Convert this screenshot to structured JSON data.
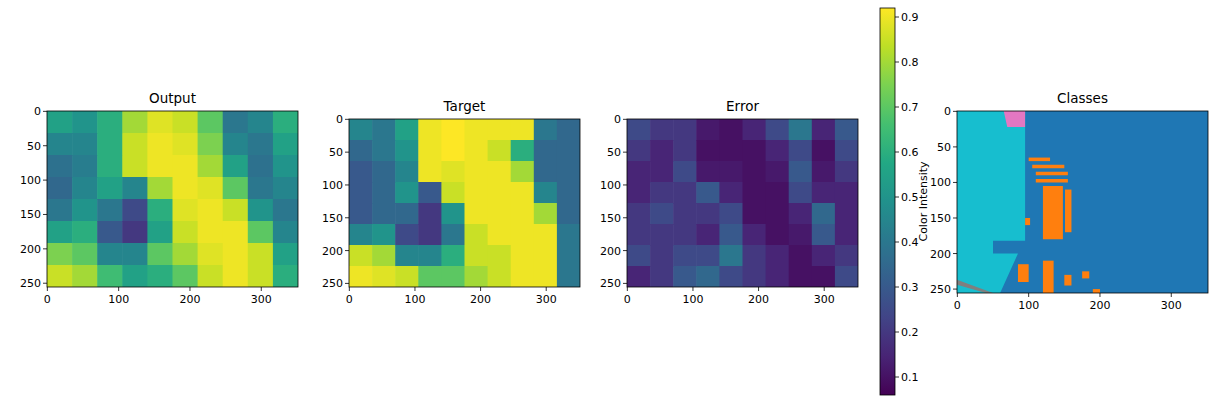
{
  "chart_data": [
    {
      "type": "heatmap",
      "title": "Output",
      "xlim": [
        -0.5,
        351.5
      ],
      "ylim": [
        255.5,
        -0.5
      ],
      "xticks": [
        0,
        100,
        200,
        300
      ],
      "yticks": [
        0,
        50,
        100,
        150,
        200,
        250
      ],
      "cells": [
        [
          0.55,
          0.5,
          0.6,
          0.8,
          0.88,
          0.85,
          0.7,
          0.4,
          0.45,
          0.6
        ],
        [
          0.45,
          0.45,
          0.6,
          0.85,
          0.9,
          0.88,
          0.75,
          0.45,
          0.4,
          0.55
        ],
        [
          0.38,
          0.42,
          0.6,
          0.85,
          0.9,
          0.9,
          0.8,
          0.55,
          0.38,
          0.5
        ],
        [
          0.35,
          0.45,
          0.55,
          0.45,
          0.8,
          0.9,
          0.88,
          0.7,
          0.4,
          0.45
        ],
        [
          0.4,
          0.5,
          0.4,
          0.25,
          0.6,
          0.88,
          0.9,
          0.85,
          0.5,
          0.4
        ],
        [
          0.55,
          0.6,
          0.3,
          0.2,
          0.55,
          0.85,
          0.9,
          0.9,
          0.7,
          0.45
        ],
        [
          0.75,
          0.7,
          0.45,
          0.45,
          0.7,
          0.8,
          0.88,
          0.9,
          0.85,
          0.55
        ],
        [
          0.85,
          0.8,
          0.65,
          0.55,
          0.6,
          0.7,
          0.85,
          0.9,
          0.85,
          0.6
        ]
      ]
    },
    {
      "type": "heatmap",
      "title": "Target",
      "xlim": [
        -0.5,
        351.5
      ],
      "ylim": [
        255.5,
        -0.5
      ],
      "xticks": [
        0,
        100,
        200,
        300
      ],
      "yticks": [
        0,
        50,
        100,
        150,
        200,
        250
      ],
      "cells": [
        [
          0.45,
          0.4,
          0.55,
          0.9,
          0.92,
          0.9,
          0.9,
          0.9,
          0.4,
          0.35
        ],
        [
          0.35,
          0.4,
          0.5,
          0.9,
          0.92,
          0.9,
          0.85,
          0.6,
          0.35,
          0.35
        ],
        [
          0.3,
          0.35,
          0.45,
          0.9,
          0.88,
          0.9,
          0.9,
          0.8,
          0.35,
          0.35
        ],
        [
          0.3,
          0.35,
          0.5,
          0.3,
          0.85,
          0.9,
          0.9,
          0.9,
          0.45,
          0.35
        ],
        [
          0.3,
          0.35,
          0.35,
          0.2,
          0.5,
          0.9,
          0.9,
          0.9,
          0.8,
          0.35
        ],
        [
          0.45,
          0.5,
          0.25,
          0.2,
          0.4,
          0.85,
          0.9,
          0.9,
          0.9,
          0.4
        ],
        [
          0.85,
          0.8,
          0.45,
          0.45,
          0.6,
          0.85,
          0.85,
          0.9,
          0.9,
          0.4
        ],
        [
          0.9,
          0.88,
          0.85,
          0.7,
          0.7,
          0.8,
          0.85,
          0.9,
          0.9,
          0.4
        ]
      ]
    },
    {
      "type": "heatmap",
      "title": "Error",
      "xlim": [
        -0.5,
        351.5
      ],
      "ylim": [
        255.5,
        -0.5
      ],
      "xticks": [
        0,
        100,
        200,
        300
      ],
      "yticks": [
        0,
        50,
        100,
        150,
        200,
        250
      ],
      "cells": [
        [
          0.25,
          0.2,
          0.2,
          0.12,
          0.1,
          0.15,
          0.25,
          0.4,
          0.15,
          0.3
        ],
        [
          0.2,
          0.15,
          0.2,
          0.1,
          0.1,
          0.1,
          0.15,
          0.25,
          0.1,
          0.25
        ],
        [
          0.15,
          0.15,
          0.25,
          0.12,
          0.12,
          0.1,
          0.12,
          0.3,
          0.12,
          0.2
        ],
        [
          0.15,
          0.2,
          0.2,
          0.3,
          0.15,
          0.1,
          0.1,
          0.25,
          0.15,
          0.15
        ],
        [
          0.2,
          0.25,
          0.2,
          0.2,
          0.25,
          0.1,
          0.1,
          0.15,
          0.35,
          0.15
        ],
        [
          0.2,
          0.2,
          0.2,
          0.15,
          0.3,
          0.15,
          0.1,
          0.12,
          0.3,
          0.15
        ],
        [
          0.25,
          0.2,
          0.25,
          0.25,
          0.4,
          0.2,
          0.15,
          0.1,
          0.15,
          0.2
        ],
        [
          0.15,
          0.2,
          0.3,
          0.35,
          0.25,
          0.2,
          0.15,
          0.1,
          0.1,
          0.25
        ]
      ]
    },
    {
      "type": "colorbar",
      "label": "Color Intensity",
      "range": [
        0.06,
        0.92
      ],
      "ticks": [
        0.1,
        0.2,
        0.3,
        0.4,
        0.5,
        0.6,
        0.7,
        0.8,
        0.9
      ]
    },
    {
      "type": "class_map",
      "title": "Classes",
      "xlim": [
        -0.5,
        351.5
      ],
      "ylim": [
        255.5,
        -0.5
      ],
      "xticks": [
        0,
        100,
        200,
        300
      ],
      "yticks": [
        0,
        50,
        100,
        150,
        200,
        250
      ],
      "regions": [
        {
          "color": "#1f77b4",
          "points": [
            [
              -0.5,
              -0.5
            ],
            [
              351.5,
              -0.5
            ],
            [
              351.5,
              255.5
            ],
            [
              -0.5,
              255.5
            ]
          ]
        },
        {
          "color": "#17becf",
          "points": [
            [
              -0.5,
              -0.5
            ],
            [
              95,
              -0.5
            ],
            [
              95,
              182
            ],
            [
              50,
              182
            ],
            [
              50,
              200
            ],
            [
              85,
              200
            ],
            [
              60,
              255.5
            ],
            [
              -0.5,
              255.5
            ]
          ]
        },
        {
          "color": "#e377c2",
          "points": [
            [
              65,
              -0.5
            ],
            [
              95,
              -0.5
            ],
            [
              95,
              22
            ],
            [
              70,
              22
            ]
          ]
        },
        {
          "color": "#7f7f7f",
          "points": [
            [
              -0.5,
              237
            ],
            [
              50,
              255.5
            ],
            [
              40,
              255.5
            ],
            [
              -0.5,
              244
            ]
          ]
        },
        {
          "color": "#ff7f0e",
          "points": [
            [
              100,
              65
            ],
            [
              130,
              65
            ],
            [
              130,
              70
            ],
            [
              100,
              70
            ]
          ]
        },
        {
          "color": "#ff7f0e",
          "points": [
            [
              105,
              75
            ],
            [
              150,
              75
            ],
            [
              150,
              80
            ],
            [
              105,
              80
            ]
          ]
        },
        {
          "color": "#ff7f0e",
          "points": [
            [
              110,
              85
            ],
            [
              155,
              85
            ],
            [
              155,
              90
            ],
            [
              110,
              90
            ]
          ]
        },
        {
          "color": "#ff7f0e",
          "points": [
            [
              110,
              95
            ],
            [
              155,
              95
            ],
            [
              155,
              100
            ],
            [
              110,
              100
            ]
          ]
        },
        {
          "color": "#ff7f0e",
          "points": [
            [
              120,
              105
            ],
            [
              148,
              105
            ],
            [
              148,
              180
            ],
            [
              120,
              180
            ]
          ]
        },
        {
          "color": "#ff7f0e",
          "points": [
            [
              151,
              110
            ],
            [
              160,
              110
            ],
            [
              160,
              170
            ],
            [
              151,
              170
            ]
          ]
        },
        {
          "color": "#ff7f0e",
          "points": [
            [
              95,
              150
            ],
            [
              102,
              150
            ],
            [
              102,
              160
            ],
            [
              95,
              160
            ]
          ]
        },
        {
          "color": "#ff7f0e",
          "points": [
            [
              85,
              215
            ],
            [
              100,
              215
            ],
            [
              100,
              240
            ],
            [
              85,
              240
            ]
          ]
        },
        {
          "color": "#ff7f0e",
          "points": [
            [
              120,
              210
            ],
            [
              135,
              210
            ],
            [
              135,
              255.5
            ],
            [
              120,
              255.5
            ]
          ]
        },
        {
          "color": "#ff7f0e",
          "points": [
            [
              150,
              230
            ],
            [
              160,
              230
            ],
            [
              160,
              245
            ],
            [
              150,
              245
            ]
          ]
        },
        {
          "color": "#ff7f0e",
          "points": [
            [
              175,
              225
            ],
            [
              185,
              225
            ],
            [
              185,
              235
            ],
            [
              175,
              235
            ]
          ]
        },
        {
          "color": "#ff7f0e",
          "points": [
            [
              190,
              250
            ],
            [
              200,
              250
            ],
            [
              200,
              255.5
            ],
            [
              190,
              255.5
            ]
          ]
        }
      ]
    }
  ]
}
